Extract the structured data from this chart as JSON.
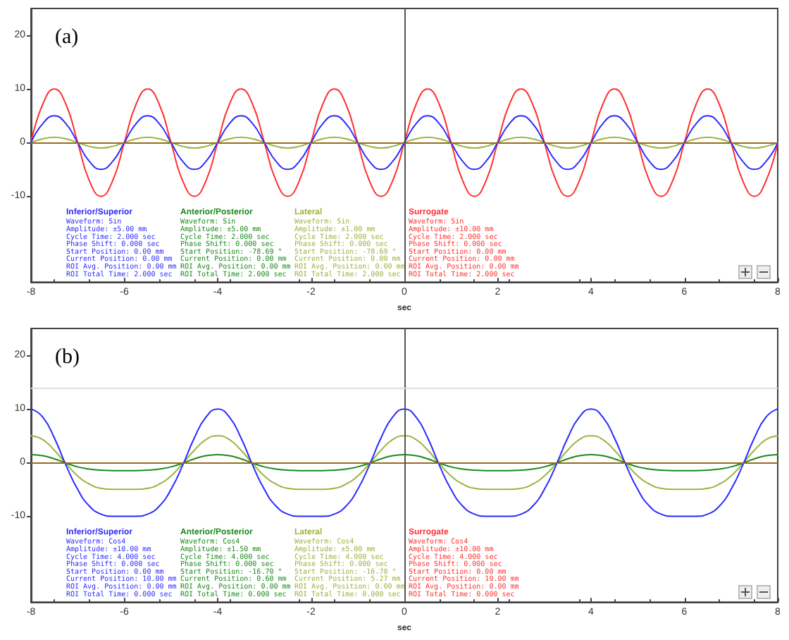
{
  "chart_data": [
    {
      "type": "line",
      "title": "(a)",
      "xlabel": "sec",
      "x": [
        -8,
        -7.75,
        -7.5,
        -7.25,
        -7,
        -6.75,
        -6.5,
        -6.25,
        -6,
        -5.75,
        -5.5,
        -5.25,
        -5,
        -4.75,
        -4.5,
        -4.25,
        -4,
        -3.75,
        -3.5,
        -3.25,
        -3,
        -2.75,
        -2.5,
        -2.25,
        -2,
        -1.75,
        -1.5,
        -1.25,
        -1,
        -0.75,
        -0.5,
        -0.25,
        0,
        0.25,
        0.5,
        0.75,
        1,
        1.25,
        1.5,
        1.75,
        2,
        2.25,
        2.5,
        2.75,
        3,
        3.25,
        3.5,
        3.75,
        4,
        4.25,
        4.5,
        4.75,
        5,
        5.25,
        5.5,
        5.75,
        6,
        6.25,
        6.5,
        6.75,
        7,
        7.25,
        7.5,
        7.75,
        8
      ],
      "series": [
        {
          "name": "Inferior/Superior",
          "color": "#2a2aff",
          "values": [
            0,
            3.5,
            5,
            3.5,
            0,
            -3.5,
            -5,
            -3.5,
            0,
            3.5,
            5,
            3.5,
            0,
            -3.5,
            -5,
            -3.5,
            0,
            3.5,
            5,
            3.5,
            0,
            -3.5,
            -5,
            -3.5,
            0,
            3.5,
            5,
            3.5,
            0,
            -3.5,
            -5,
            -3.5,
            0,
            3.5,
            5,
            3.5,
            0,
            -3.5,
            -5,
            -3.5,
            0,
            3.5,
            5,
            3.5,
            0,
            -3.5,
            -5,
            -3.5,
            0,
            3.5,
            5,
            3.5,
            0,
            -3.5,
            -5,
            -3.5,
            0,
            3.5,
            5,
            3.5,
            0,
            -3.5,
            -5,
            -3.5,
            0
          ]
        },
        {
          "name": "Anterior/Posterior",
          "color": "#1a8a1a",
          "values": [
            null,
            null,
            null,
            null,
            null,
            null,
            null,
            null,
            null,
            null,
            null,
            null,
            null,
            null,
            null,
            null,
            null,
            null,
            null,
            null,
            null,
            null,
            null,
            null,
            null,
            null,
            null,
            null,
            null,
            null,
            null,
            null,
            null,
            null,
            null,
            null,
            null,
            null,
            null,
            null,
            null,
            null,
            null,
            null,
            null,
            null,
            null,
            null,
            null,
            null,
            null,
            null,
            null,
            null,
            null,
            null,
            null,
            null,
            null,
            null,
            null,
            null,
            null,
            null,
            null
          ]
        },
        {
          "name": "Lateral",
          "color": "#9cb340",
          "values": [
            0,
            0.7,
            1,
            0.7,
            0,
            -0.7,
            -1,
            -0.7,
            0,
            0.7,
            1,
            0.7,
            0,
            -0.7,
            -1,
            -0.7,
            0,
            0.7,
            1,
            0.7,
            0,
            -0.7,
            -1,
            -0.7,
            0,
            0.7,
            1,
            0.7,
            0,
            -0.7,
            -1,
            -0.7,
            0,
            0.7,
            1,
            0.7,
            0,
            -0.7,
            -1,
            -0.7,
            0,
            0.7,
            1,
            0.7,
            0,
            -0.7,
            -1,
            -0.7,
            0,
            0.7,
            1,
            0.7,
            0,
            -0.7,
            -1,
            -0.7,
            0,
            0.7,
            1,
            0.7,
            0,
            -0.7,
            -1,
            -0.7,
            0
          ]
        },
        {
          "name": "Surrogate",
          "color": "#ff3030",
          "values": [
            0,
            7.1,
            10,
            7.1,
            0,
            -7.1,
            -10,
            -7.1,
            0,
            7.1,
            10,
            7.1,
            0,
            -7.1,
            -10,
            -7.1,
            0,
            7.1,
            10,
            7.1,
            0,
            -7.1,
            -10,
            -7.1,
            0,
            7.1,
            10,
            7.1,
            0,
            -7.1,
            -10,
            -7.1,
            0,
            7.1,
            10,
            7.1,
            0,
            -7.1,
            -10,
            -7.1,
            0,
            7.1,
            10,
            7.1,
            0,
            -7.1,
            -10,
            -7.1,
            0,
            7.1,
            10,
            7.1,
            0,
            -7.1,
            -10,
            -7.1,
            0,
            7.1,
            10,
            7.1,
            0,
            -7.1,
            -10,
            -7.1,
            0
          ]
        }
      ],
      "annotations": [
        "Waveform: Sin\nAmplitude: ±5.00 mm\nCycle Time: 2.000 sec\nPhase Shift: 0.000 sec\nStart Position: 0.00 mm\nCurrent Position: 0.00 mm\nROI Avg. Position: 0.00 mm\nROI Total Time: 2.000 sec",
        "Waveform: Sin\nAmplitude: ±5.00 mm\nCycle Time: 2.000 sec\nPhase Shift: 0.000 sec\nStart Position: -78.69 °\nCurrent Position: 0.00 mm\nROI Avg. Position: 0.00 mm\nROI Total Time: 2.000 sec",
        "Waveform: Sin\nAmplitude: ±1.00 mm\nCycle Time: 2.000 sec\nPhase Shift: 0.000 sec\nStart Position: -78.69 °\nCurrent Position: 0.00 mm\nROI Avg. Position: 0.00 mm\nROI Total Time: 2.000 sec",
        "Waveform: Sin\nAmplitude: ±10.00 mm\nCycle Time: 2.000 sec\nPhase Shift: 0.000 sec\nStart Position: 0.00 mm\nCurrent Position: 0.00 mm\nROI Avg. Position: 0.00 mm\nROI Total Time: 2.000 sec"
      ],
      "ref_lines": [
        {
          "axis": "y",
          "value": 0,
          "color": "#9a6a1a"
        },
        {
          "axis": "x",
          "value": 0,
          "color": "#555555"
        }
      ],
      "xlim": [
        -8,
        8
      ],
      "xticks": [
        -8,
        -6,
        -4,
        -2,
        0,
        2,
        4,
        6,
        8
      ],
      "ylim": [
        -26,
        25
      ],
      "yticks": [
        -10,
        0,
        10,
        20
      ]
    },
    {
      "type": "line",
      "title": "(b)",
      "xlabel": "sec",
      "x": [
        -8,
        -7.75,
        -7.5,
        -7.25,
        -7,
        -6.75,
        -6.5,
        -6.25,
        -6,
        -5.75,
        -5.5,
        -5.25,
        -5,
        -4.75,
        -4.5,
        -4.25,
        -4,
        -3.75,
        -3.5,
        -3.25,
        -3,
        -2.75,
        -2.5,
        -2.25,
        -2,
        -1.75,
        -1.5,
        -1.25,
        -1,
        -0.75,
        -0.5,
        -0.25,
        0,
        0.25,
        0.5,
        0.75,
        1,
        1.25,
        1.5,
        1.75,
        2,
        2.25,
        2.5,
        2.75,
        3,
        3.25,
        3.5,
        3.75,
        4,
        4.25,
        4.5,
        4.75,
        5,
        5.25,
        5.5,
        5.75,
        6,
        6.25,
        6.5,
        6.75,
        7,
        7.25,
        7.5,
        7.75,
        8
      ],
      "series": [
        {
          "name": "Inferior/Superior",
          "color": "#2a2aff",
          "values": [
            10,
            8.5,
            4.6,
            -0.5,
            -5,
            -8.1,
            -9.6,
            -10,
            -10,
            -10,
            -9.6,
            -8.1,
            -5,
            -0.5,
            4.6,
            8.5,
            10,
            8.5,
            4.6,
            -0.5,
            -5,
            -8.1,
            -9.6,
            -10,
            -10,
            -10,
            -9.6,
            -8.1,
            -5,
            -0.5,
            4.6,
            8.5,
            10,
            8.5,
            4.6,
            -0.5,
            -5,
            -8.1,
            -9.6,
            -10,
            -10,
            -10,
            -9.6,
            -8.1,
            -5,
            -0.5,
            4.6,
            8.5,
            10,
            8.5,
            4.6,
            -0.5,
            -5,
            -8.1,
            -9.6,
            -10,
            -10,
            -10,
            -9.6,
            -8.1,
            -5,
            -0.5,
            4.6,
            8.5,
            10
          ]
        },
        {
          "name": "Anterior/Posterior",
          "color": "#1a8a1a",
          "values": [
            1.5,
            1.3,
            0.7,
            -0.1,
            -0.8,
            -1.2,
            -1.4,
            -1.5,
            -1.5,
            -1.5,
            -1.4,
            -1.2,
            -0.8,
            -0.1,
            0.7,
            1.3,
            1.5,
            1.3,
            0.7,
            -0.1,
            -0.8,
            -1.2,
            -1.4,
            -1.5,
            -1.5,
            -1.5,
            -1.4,
            -1.2,
            -0.8,
            -0.1,
            0.7,
            1.3,
            1.5,
            1.3,
            0.7,
            -0.1,
            -0.8,
            -1.2,
            -1.4,
            -1.5,
            -1.5,
            -1.5,
            -1.4,
            -1.2,
            -0.8,
            -0.1,
            0.7,
            1.3,
            1.5,
            1.3,
            0.7,
            -0.1,
            -0.8,
            -1.2,
            -1.4,
            -1.5,
            -1.5,
            -1.5,
            -1.4,
            -1.2,
            -0.8,
            -0.1,
            0.7,
            1.3,
            1.5
          ]
        },
        {
          "name": "Lateral",
          "color": "#9cb340",
          "values": [
            5,
            4.3,
            2.3,
            -0.2,
            -2.5,
            -4,
            -4.8,
            -5,
            -5,
            -5,
            -4.8,
            -4,
            -2.5,
            -0.2,
            2.3,
            4.3,
            5,
            4.3,
            2.3,
            -0.2,
            -2.5,
            -4,
            -4.8,
            -5,
            -5,
            -5,
            -4.8,
            -4,
            -2.5,
            -0.2,
            2.3,
            4.3,
            5,
            4.3,
            2.3,
            -0.2,
            -2.5,
            -4,
            -4.8,
            -5,
            -5,
            -5,
            -4.8,
            -4,
            -2.5,
            -0.2,
            2.3,
            4.3,
            5,
            4.3,
            2.3,
            -0.2,
            -2.5,
            -4,
            -4.8,
            -5,
            -5,
            -5,
            -4.8,
            -4,
            -2.5,
            -0.2,
            2.3,
            4.3,
            5
          ]
        },
        {
          "name": "Surrogate",
          "color": "#ff3030",
          "values": [
            null,
            null,
            null,
            null,
            null,
            null,
            null,
            null,
            null,
            null,
            null,
            null,
            null,
            null,
            null,
            null,
            null,
            null,
            null,
            null,
            null,
            null,
            null,
            null,
            null,
            null,
            null,
            null,
            null,
            null,
            null,
            null,
            null,
            null,
            null,
            null,
            null,
            null,
            null,
            null,
            null,
            null,
            null,
            null,
            null,
            null,
            null,
            null,
            null,
            null,
            null,
            null,
            null,
            null,
            null,
            null,
            null,
            null,
            null,
            null,
            null,
            null,
            null,
            null,
            null
          ]
        }
      ],
      "annotations": [
        "Waveform: Cos4\nAmplitude: ±10.00 mm\nCycle Time: 4.000 sec\nPhase Shift: 0.000 sec\nStart Position: 0.00 mm\nCurrent Position: 10.00 mm\nROI Avg. Position: 0.00 mm\nROI Total Time: 0.000 sec",
        "Waveform: Cos4\nAmplitude: ±1.50 mm\nCycle Time: 4.000 sec\nPhase Shift: 0.000 sec\nStart Position: -16.70 °\nCurrent Position: 0.60 mm\nROI Avg. Position: 0.00 mm\nROI Total Time: 0.000 sec",
        "Waveform: Cos4\nAmplitude: ±5.00 mm\nCycle Time: 4.000 sec\nPhase Shift: 0.000 sec\nStart Position: -16.70 °\nCurrent Position: 5.27 mm\nROI Avg. Position: 0.00 mm\nROI Total Time: 0.000 sec",
        "Waveform: Cos4\nAmplitude: ±10.00 mm\nCycle Time: 4.000 sec\nPhase Shift: 0.000 sec\nStart Position: 0.00 mm\nCurrent Position: 10.00 mm\nROI Avg. Position: 0.00 mm\nROI Total Time: 0.000 sec"
      ],
      "ref_lines": [
        {
          "axis": "y",
          "value": 0,
          "color": "#9a6a1a"
        },
        {
          "axis": "x",
          "value": 0,
          "color": "#555555"
        },
        {
          "axis": "y",
          "value": 13.8,
          "color": "#dddddd"
        }
      ],
      "xlim": [
        -8,
        8
      ],
      "xticks": [
        -8,
        -6,
        -4,
        -2,
        0,
        2,
        4,
        6,
        8
      ],
      "ylim": [
        -26,
        25
      ],
      "yticks": [
        -10,
        0,
        10,
        20
      ]
    }
  ]
}
